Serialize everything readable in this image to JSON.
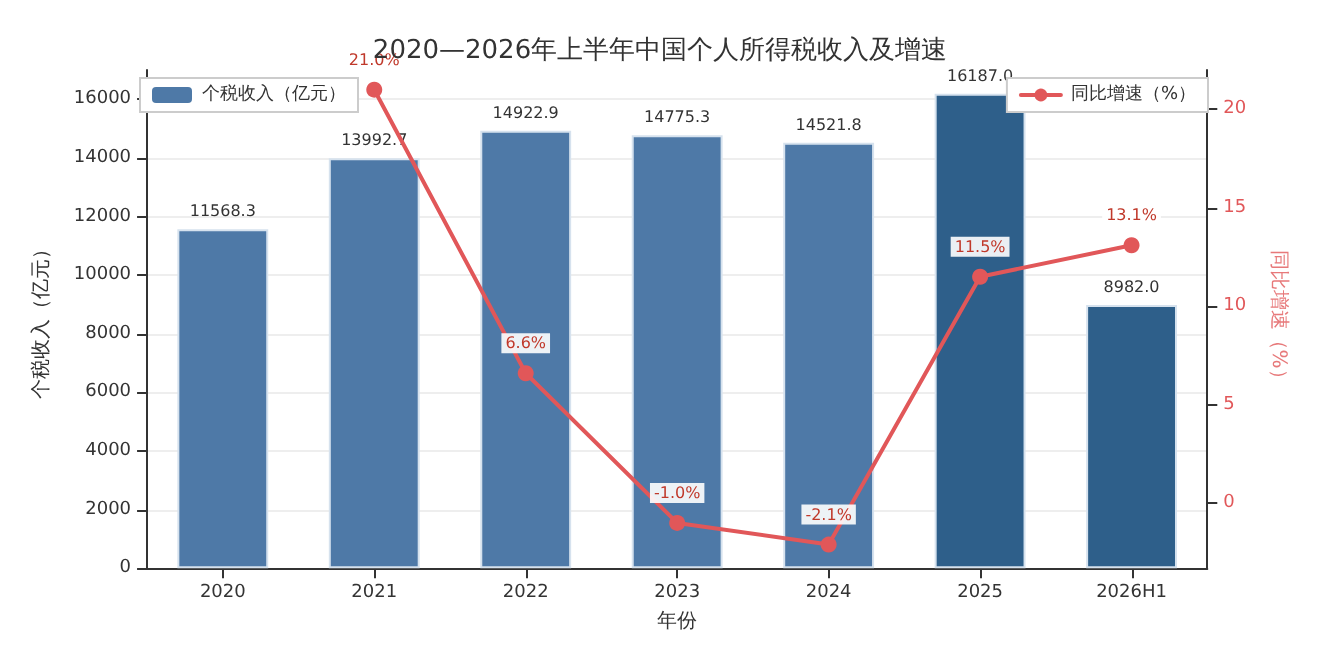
{
  "chart_data": {
    "type": "bar",
    "title": "2020—2026年上半年中国个人所得税收入及增速",
    "xlabel": "年份",
    "ylabel": "个税收入（亿元）",
    "y2label": "同比增速（%）",
    "categories": [
      "2020",
      "2021",
      "2022",
      "2023",
      "2024",
      "2025",
      "2026H1"
    ],
    "series": [
      {
        "name": "个税收入（亿元）",
        "colors": [
          "#4e79a7",
          "#4e79a7",
          "#4e79a7",
          "#4e79a7",
          "#4e79a7",
          "#2e5f8a",
          "#2e5f8a"
        ],
        "values": [
          11568.3,
          13992.7,
          14922.9,
          14775.3,
          14521.8,
          16187.0,
          8982.0
        ],
        "value_labels": [
          "11568.3",
          "13992.7",
          "14922.9",
          "14775.3",
          "14521.8",
          "16187.0",
          "8982.0"
        ]
      },
      {
        "name": "同比增速（%）",
        "type": "line",
        "axis": "y2",
        "color": "#e15759",
        "marker": "circle",
        "line_style": "solid",
        "values": [
          null,
          21.0,
          6.6,
          -1.0,
          -2.1,
          11.5,
          13.1
        ],
        "value_labels": [
          null,
          "21.0%",
          "6.6%",
          "-1.0%",
          "-2.1%",
          "11.5%",
          "13.1%"
        ]
      }
    ],
    "ylim": [
      0,
      17000
    ],
    "yticks": [
      0,
      2000,
      4000,
      6000,
      8000,
      10000,
      12000,
      14000,
      16000
    ],
    "y2lim": [
      -3.3,
      22
    ],
    "y2ticks": [
      0,
      5,
      10,
      15,
      20
    ],
    "grid": "y",
    "legend": "top"
  }
}
